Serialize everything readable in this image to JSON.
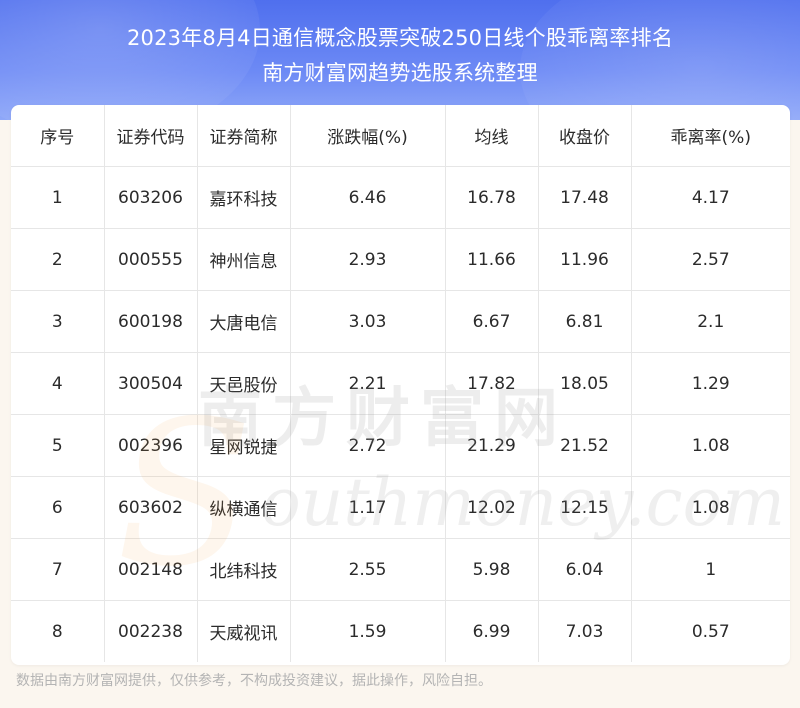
{
  "header": {
    "title_line1": "2023年8月4日通信概念股票突破250日线个股乖离率排名",
    "title_line2": "南方财富网趋势选股系统整理",
    "bg_color": "#5a78f0"
  },
  "table": {
    "columns": [
      "序号",
      "证券代码",
      "证券简称",
      "涨跌幅(%)",
      "均线",
      "收盘价",
      "乖离率(%)"
    ],
    "rows": [
      [
        "1",
        "603206",
        "嘉环科技",
        "6.46",
        "16.78",
        "17.48",
        "4.17"
      ],
      [
        "2",
        "000555",
        "神州信息",
        "2.93",
        "11.66",
        "11.96",
        "2.57"
      ],
      [
        "3",
        "600198",
        "大唐电信",
        "3.03",
        "6.67",
        "6.81",
        "2.1"
      ],
      [
        "4",
        "300504",
        "天邑股份",
        "2.21",
        "17.82",
        "18.05",
        "1.29"
      ],
      [
        "5",
        "002396",
        "星网锐捷",
        "2.72",
        "21.29",
        "21.52",
        "1.08"
      ],
      [
        "6",
        "603602",
        "纵横通信",
        "1.17",
        "12.02",
        "12.15",
        "1.08"
      ],
      [
        "7",
        "002148",
        "北纬科技",
        "2.55",
        "5.98",
        "6.04",
        "1"
      ],
      [
        "8",
        "002238",
        "天威视讯",
        "1.59",
        "6.99",
        "7.03",
        "0.57"
      ]
    ]
  },
  "watermark": {
    "cn": "南方财富网",
    "en": "outhmoney.com",
    "accent_color": "#f6a34a"
  },
  "footer": {
    "disclaimer": "数据由南方财富网提供，仅供参考，不构成投资建议，据此操作，风险自担。"
  }
}
